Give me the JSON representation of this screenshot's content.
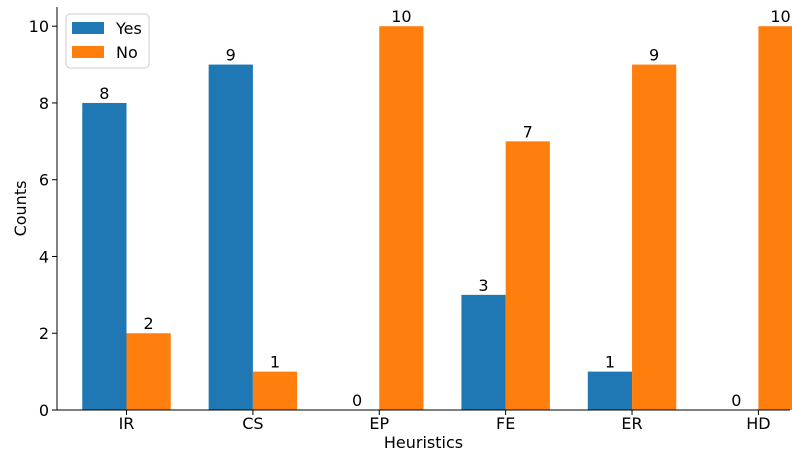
{
  "chart_data": {
    "type": "bar",
    "categories": [
      "IR",
      "CS",
      "EP",
      "FE",
      "ER",
      "HD"
    ],
    "series": [
      {
        "name": "Yes",
        "values": [
          8,
          9,
          0,
          3,
          1,
          0
        ],
        "color": "#1f77b4"
      },
      {
        "name": "No",
        "values": [
          2,
          1,
          10,
          7,
          9,
          10
        ],
        "color": "#ff7f0e"
      }
    ],
    "xlabel": "Heuristics",
    "ylabel": "Counts",
    "ylim": [
      0,
      10.5
    ],
    "yticks": [
      0,
      2,
      4,
      6,
      8,
      10
    ],
    "legend_position": "top-left",
    "grid": false
  }
}
